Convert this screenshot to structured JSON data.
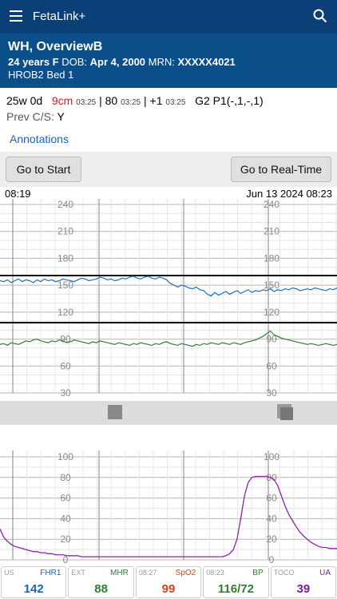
{
  "app": {
    "title": "FetaLink+"
  },
  "patient": {
    "name": "WH, OverviewB",
    "age_sex": "24 years F",
    "dob_label": "DOB:",
    "dob": "Apr 4, 2000",
    "mrn_label": "MRN:",
    "mrn": "XXXXX4021",
    "location": "HROB2 Bed 1"
  },
  "status": {
    "ga": "25w 0d",
    "dilation": "9cm",
    "dilation_time": "03:25",
    "effacement": "80",
    "effacement_time": "03:25",
    "station": "+1",
    "station_time": "03:25",
    "gp": "G2 P1(-,1,-,1)",
    "prev_cs_label": "Prev C/S:",
    "prev_cs": "Y"
  },
  "annotations_label": "Annotations",
  "buttons": {
    "start": "Go to Start",
    "realtime": "Go to Real-Time"
  },
  "timeline": {
    "left": "08:19",
    "right": "Jun 13 2024 08:23"
  },
  "fhr_scale": [
    "240",
    "210",
    "180",
    "150",
    "120",
    "90",
    "60",
    "30"
  ],
  "toco_scale": [
    "100",
    "80",
    "60",
    "40",
    "20",
    "0"
  ],
  "fhr_trace": [
    155,
    154,
    156,
    153,
    155,
    157,
    154,
    156,
    155,
    153,
    156,
    154,
    157,
    155,
    156,
    154,
    155,
    157,
    156,
    155,
    154,
    156,
    158,
    157,
    155,
    156,
    157,
    159,
    158,
    156,
    157,
    155,
    156,
    158,
    157,
    159,
    160,
    158,
    157,
    159,
    160,
    158,
    157,
    159,
    158,
    156,
    152,
    150,
    148,
    150,
    149,
    147,
    146,
    148,
    145,
    144,
    140,
    138,
    142,
    139,
    141,
    143,
    140,
    142,
    144,
    141,
    143,
    145,
    142,
    144,
    143,
    145,
    144,
    146,
    143,
    145,
    144,
    146,
    145,
    147,
    146,
    144,
    145,
    146,
    145,
    147,
    146,
    145,
    144,
    146,
    145,
    147
  ],
  "mhr_trace": [
    84,
    85,
    83,
    86,
    85,
    84,
    86,
    88,
    87,
    89,
    90,
    88,
    87,
    86,
    88,
    87,
    89,
    88,
    86,
    87,
    89,
    88,
    87,
    86,
    85,
    87,
    86,
    88,
    87,
    86,
    85,
    84,
    86,
    85,
    84,
    83,
    85,
    84,
    86,
    85,
    84,
    83,
    85,
    84,
    86,
    87,
    85,
    84,
    83,
    85,
    84,
    83,
    82,
    84,
    83,
    85,
    84,
    86,
    85,
    84,
    86,
    85,
    84,
    86,
    85,
    84,
    86,
    87,
    88,
    89,
    91,
    93,
    96,
    99,
    95,
    93,
    91,
    90,
    89,
    88,
    87,
    86,
    85,
    84,
    85,
    84,
    83,
    84,
    85,
    84,
    83,
    84
  ],
  "ua_trace": [
    30,
    22,
    18,
    15,
    13,
    12,
    11,
    10,
    9,
    8,
    8,
    7,
    7,
    6,
    6,
    5,
    5,
    5,
    4,
    4,
    4,
    4,
    3,
    3,
    3,
    3,
    3,
    3,
    3,
    3,
    3,
    3,
    3,
    3,
    3,
    3,
    3,
    3,
    3,
    3,
    3,
    3,
    3,
    3,
    3,
    3,
    3,
    3,
    3,
    3,
    3,
    3,
    3,
    3,
    3,
    3,
    3,
    3,
    3,
    3,
    3,
    4,
    6,
    10,
    20,
    40,
    62,
    75,
    80,
    81,
    81,
    81,
    81,
    80,
    78,
    72,
    62,
    52,
    44,
    38,
    32,
    27,
    23,
    20,
    17,
    15,
    13,
    12,
    12,
    11,
    11,
    11
  ],
  "vitals": [
    {
      "tag": "US",
      "label": "FHR1",
      "value": "142",
      "color": "#1565c0"
    },
    {
      "tag": "EXT",
      "label": "MHR",
      "value": "88",
      "color": "#2e7d32"
    },
    {
      "tag": "08:27",
      "label": "SpO2",
      "value": "99",
      "color": "#d84315"
    },
    {
      "tag": "08:23",
      "label": "BP",
      "value": "116/72",
      "color": "#2e7d32"
    },
    {
      "tag": "TOCO",
      "label": "UA",
      "value": "39",
      "color": "#7b1fa2"
    }
  ]
}
